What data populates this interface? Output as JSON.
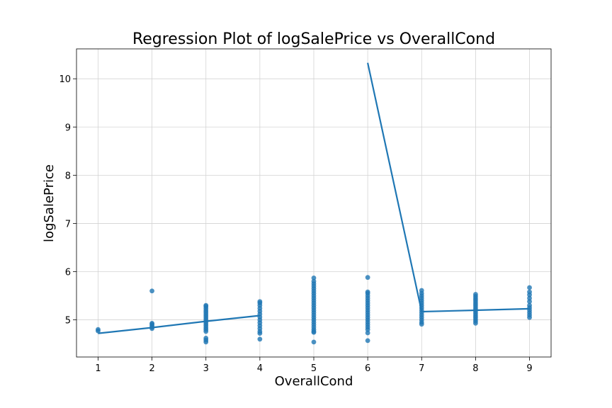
{
  "chart_data": {
    "type": "scatter",
    "title": "Regression Plot of logSalePrice vs OverallCond",
    "xlabel": "OverallCond",
    "ylabel": "logSalePrice",
    "xlim": [
      0.6,
      9.4
    ],
    "ylim": [
      4.23,
      10.62
    ],
    "xticks": [
      1,
      2,
      3,
      4,
      5,
      6,
      7,
      8,
      9
    ],
    "yticks": [
      5,
      6,
      7,
      8,
      9,
      10
    ],
    "grid": true,
    "colors": {
      "points": "#1f77b4",
      "line": "#1f77b4"
    },
    "scatter": [
      {
        "x": 1,
        "y": [
          4.77,
          4.8
        ]
      },
      {
        "x": 2,
        "y": [
          4.82,
          4.85,
          4.88,
          4.91,
          4.93,
          5.6
        ]
      },
      {
        "x": 3,
        "y": [
          4.54,
          4.58,
          4.62,
          4.76,
          4.8,
          4.84,
          4.88,
          4.92,
          4.96,
          5.0,
          5.04,
          5.08,
          5.12,
          5.16,
          5.2,
          5.24,
          5.28,
          5.3
        ]
      },
      {
        "x": 4,
        "y": [
          4.6,
          4.72,
          4.76,
          4.82,
          4.88,
          4.94,
          5.0,
          5.06,
          5.12,
          5.18,
          5.24,
          5.3,
          5.35,
          5.38
        ]
      },
      {
        "x": 5,
        "y": [
          4.54,
          4.74,
          4.76,
          4.8,
          4.85,
          4.9,
          4.95,
          5.0,
          5.05,
          5.1,
          5.15,
          5.2,
          5.25,
          5.3,
          5.35,
          5.4,
          5.45,
          5.5,
          5.55,
          5.6,
          5.65,
          5.7,
          5.75,
          5.8,
          5.87
        ]
      },
      {
        "x": 6,
        "y": [
          4.57,
          4.73,
          4.8,
          4.85,
          4.9,
          4.95,
          5.0,
          5.05,
          5.1,
          5.15,
          5.2,
          5.25,
          5.3,
          5.35,
          5.4,
          5.45,
          5.5,
          5.55,
          5.58,
          5.88
        ]
      },
      {
        "x": 7,
        "y": [
          4.91,
          4.95,
          5.0,
          5.05,
          5.1,
          5.15,
          5.2,
          5.25,
          5.3,
          5.35,
          5.4,
          5.45,
          5.5,
          5.55,
          5.61
        ]
      },
      {
        "x": 8,
        "y": [
          4.93,
          4.97,
          5.01,
          5.05,
          5.09,
          5.13,
          5.17,
          5.21,
          5.25,
          5.29,
          5.33,
          5.37,
          5.41,
          5.45,
          5.49,
          5.53
        ]
      },
      {
        "x": 9,
        "y": [
          5.05,
          5.1,
          5.15,
          5.2,
          5.25,
          5.3,
          5.38,
          5.45,
          5.52,
          5.58,
          5.67
        ]
      }
    ],
    "regression_line": {
      "x": [
        1,
        2,
        3,
        4,
        5,
        6,
        7,
        8,
        9
      ],
      "y": [
        4.72,
        4.84,
        4.97,
        5.09,
        null,
        10.33,
        5.17,
        5.2,
        5.23
      ]
    }
  }
}
